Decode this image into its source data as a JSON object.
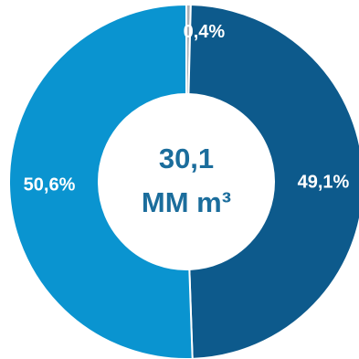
{
  "chart_data": {
    "type": "pie",
    "categories": [
      "",
      "",
      ""
    ],
    "values": [
      0.4,
      49.1,
      50.6
    ],
    "labels": [
      "0,4%",
      "49,1%",
      "50,6%"
    ],
    "colors": [
      "#a9b0b7",
      "#0d5a8c",
      "#0a94d0"
    ],
    "center_value": "30,1",
    "center_unit": "MM m³",
    "title": "",
    "legend": "none"
  }
}
